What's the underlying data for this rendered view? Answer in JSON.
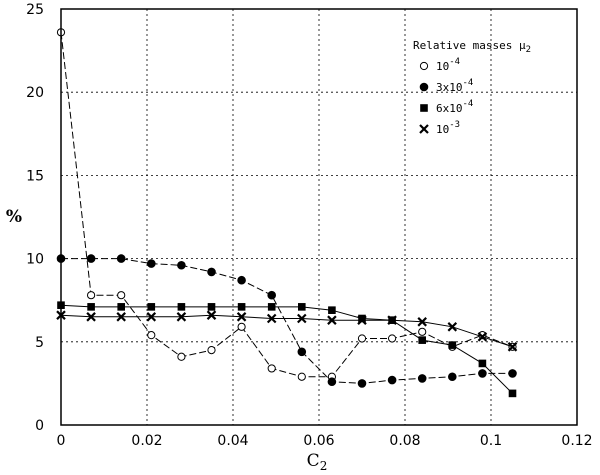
{
  "chart_data": {
    "type": "line",
    "xlabel": "C",
    "xlabel_sub": "2",
    "ylabel": "%",
    "xlim": [
      0,
      0.12
    ],
    "ylim": [
      0,
      25
    ],
    "xticks": [
      "0",
      "0.02",
      "0.04",
      "0.06",
      "0.08",
      "0.1",
      "0.12"
    ],
    "yticks": [
      "0",
      "5",
      "10",
      "15",
      "20",
      "25"
    ],
    "grid": true,
    "legend_position": "top-right",
    "legend_title": "Relative masses μ",
    "legend_title_sub": "2",
    "x": [
      0,
      0.007,
      0.014,
      0.021,
      0.028,
      0.035,
      0.042,
      0.049,
      0.056,
      0.063,
      0.07,
      0.077,
      0.084,
      0.091,
      0.098,
      0.105
    ],
    "series": [
      {
        "name": "10",
        "name_sup": "-4",
        "marker": "open-circle",
        "values": [
          23.6,
          7.8,
          7.8,
          5.4,
          4.1,
          4.5,
          5.9,
          3.4,
          2.9,
          2.9,
          5.2,
          5.2,
          5.6,
          4.7,
          5.4,
          4.7
        ]
      },
      {
        "name": "3x10",
        "name_sup": "-4",
        "marker": "filled-circle",
        "values": [
          10.0,
          10.0,
          10.0,
          9.7,
          9.6,
          9.2,
          8.7,
          7.8,
          4.4,
          2.6,
          2.5,
          2.7,
          2.8,
          2.9,
          3.1,
          3.1
        ]
      },
      {
        "name": "6x10",
        "name_sup": "-4",
        "marker": "filled-square",
        "values": [
          7.2,
          7.1,
          7.1,
          7.1,
          7.1,
          7.1,
          7.1,
          7.1,
          7.1,
          6.9,
          6.4,
          6.3,
          5.1,
          4.8,
          3.7,
          1.9
        ]
      },
      {
        "name": "10",
        "name_sup": "-3",
        "marker": "x",
        "values": [
          6.6,
          6.5,
          6.5,
          6.5,
          6.5,
          6.6,
          6.5,
          6.4,
          6.4,
          6.3,
          6.3,
          6.3,
          6.2,
          5.9,
          5.3,
          4.7
        ]
      }
    ]
  }
}
